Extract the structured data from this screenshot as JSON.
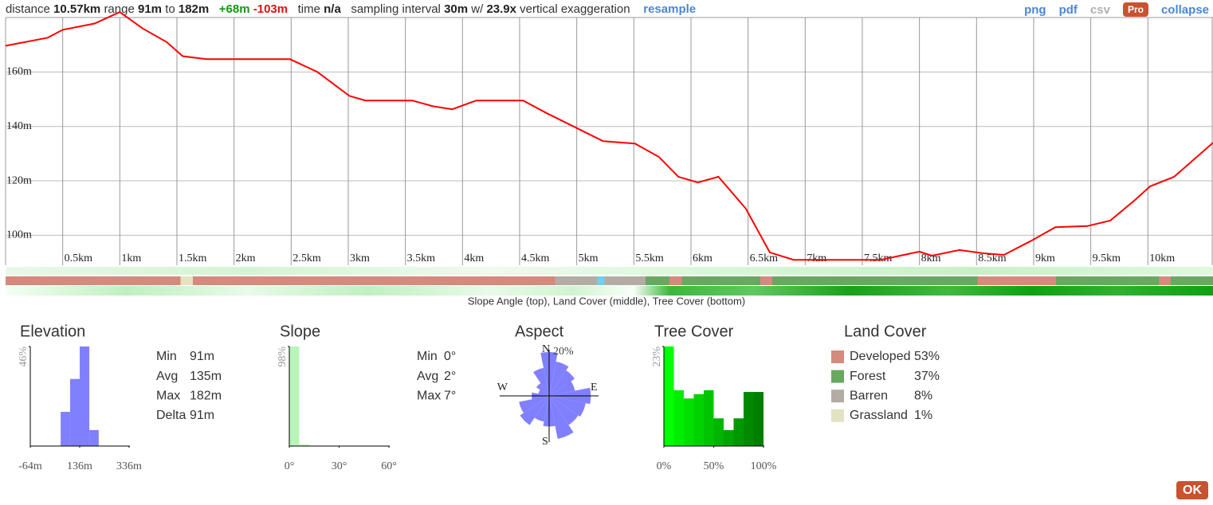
{
  "header": {
    "distance_label": "distance",
    "distance": "10.57km",
    "range_label": "range",
    "range_min": "91m",
    "range_to": "to",
    "range_max": "182m",
    "gain": "+68m",
    "loss": "-103m",
    "time_label": "time",
    "time": "n/a",
    "sampling_label": "sampling interval",
    "sampling": "30m",
    "sampling_with": "w/",
    "exaggeration": "23.9x",
    "exaggeration_label": "vertical exaggeration",
    "resample": "resample",
    "links": [
      "png",
      "pdf",
      "csv",
      "Pro",
      "collapse"
    ]
  },
  "strip_caption": "Slope Angle (top), Land Cover (middle), Tree Cover (bottom)",
  "chart_data": [
    {
      "type": "line",
      "color": "#ff0000",
      "grid": true,
      "x": [
        0,
        0.37,
        0.5,
        0.78,
        1.0,
        1.2,
        1.41,
        1.55,
        1.76,
        2.49,
        2.73,
        3.01,
        3.15,
        3.56,
        3.74,
        3.91,
        4.12,
        4.53,
        4.74,
        5.09,
        5.23,
        5.51,
        5.72,
        5.89,
        6.06,
        6.24,
        6.48,
        6.69,
        6.9,
        7.24,
        7.66,
        8.0,
        8.11,
        8.35,
        8.56,
        8.74,
        8.98,
        9.19,
        9.47,
        9.67,
        9.88,
        10.02,
        10.23,
        10.57
      ],
      "values": [
        169.6,
        172.6,
        175.5,
        177.8,
        182,
        176,
        171,
        165.8,
        164.7,
        164.7,
        160,
        151.2,
        149.5,
        149.5,
        147.4,
        146.3,
        149.5,
        149.5,
        144.8,
        137.5,
        134.6,
        133.7,
        128.8,
        121.5,
        119.4,
        121.5,
        109.8,
        93.7,
        91,
        91,
        91,
        94,
        92.5,
        94.6,
        93.4,
        92.8,
        98,
        103,
        103.4,
        105.4,
        112.7,
        118,
        121.5,
        134
      ],
      "xlim": [
        0,
        10.57
      ],
      "ylim": [
        89,
        180
      ],
      "xticks": [
        {
          "value": 0.5,
          "label": "0.5km"
        },
        {
          "value": 1,
          "label": "1km"
        },
        {
          "value": 1.5,
          "label": "1.5km"
        },
        {
          "value": 2,
          "label": "2km"
        },
        {
          "value": 2.5,
          "label": "2.5km"
        },
        {
          "value": 3,
          "label": "3km"
        },
        {
          "value": 3.5,
          "label": "3.5km"
        },
        {
          "value": 4,
          "label": "4km"
        },
        {
          "value": 4.5,
          "label": "4.5km"
        },
        {
          "value": 5,
          "label": "5km"
        },
        {
          "value": 5.5,
          "label": "5.5km"
        },
        {
          "value": 6,
          "label": "6km"
        },
        {
          "value": 6.5,
          "label": "6.5km"
        },
        {
          "value": 7,
          "label": "7km"
        },
        {
          "value": 7.5,
          "label": "7.5km"
        },
        {
          "value": 8,
          "label": "8km"
        },
        {
          "value": 8.5,
          "label": "8.5km"
        },
        {
          "value": 9,
          "label": "9km"
        },
        {
          "value": 9.5,
          "label": "9.5km"
        },
        {
          "value": 10,
          "label": "10km"
        }
      ],
      "yticks": [
        {
          "value": 100,
          "label": "100m"
        },
        {
          "value": 120,
          "label": "120m"
        },
        {
          "value": 140,
          "label": "140m"
        },
        {
          "value": 160,
          "label": "160m"
        }
      ]
    },
    {
      "type": "histogram",
      "title": "Elevation",
      "color": "#8080ff",
      "bins": [
        59,
        97,
        136,
        175,
        213
      ],
      "values": [
        15.8,
        31,
        46,
        7.4
      ],
      "xlim": [
        -64,
        336
      ],
      "ylim": [
        0,
        46
      ],
      "xticks": [
        {
          "value": -64,
          "label": "-64m"
        },
        {
          "value": 136,
          "label": "136m"
        },
        {
          "value": 336,
          "label": "336m"
        }
      ],
      "yticks": [
        {
          "value": 46,
          "label": "46%"
        }
      ]
    },
    {
      "type": "histogram",
      "title": "Slope",
      "color": "#b8f5b8",
      "bins": [
        0,
        6,
        12
      ],
      "values": [
        98,
        1.5
      ],
      "xlim": [
        0,
        60
      ],
      "ylim": [
        0,
        98
      ],
      "xticks": [
        {
          "value": 0,
          "label": "0°"
        },
        {
          "value": 30,
          "label": "30°"
        },
        {
          "value": 60,
          "label": "60°"
        }
      ],
      "yticks": [
        {
          "value": 98,
          "label": "98%"
        }
      ]
    },
    {
      "type": "rose",
      "title": "Aspect",
      "color": "#8080ff",
      "categories": [
        "N",
        null,
        null,
        null,
        "E",
        null,
        null,
        null,
        "S",
        null,
        null,
        null,
        "W",
        null,
        null,
        null
      ],
      "values": [
        20,
        16,
        14,
        12,
        19,
        17,
        16,
        20,
        14,
        12,
        16,
        14,
        8,
        5,
        7,
        13
      ],
      "rlim": [
        0,
        20
      ],
      "rticks": [
        {
          "value": 20,
          "label": "20%"
        }
      ]
    },
    {
      "type": "histogram",
      "title": "Tree Cover",
      "colors": [
        "#00ff00",
        "#00ee00",
        "#00e000",
        "#00d200",
        "#00c400",
        "#00b400",
        "#00a600",
        "#009800",
        "#008a00",
        "#007e00"
      ],
      "bins": [
        0,
        10,
        20,
        30,
        40,
        50,
        60,
        70,
        80,
        90,
        100
      ],
      "values": [
        23,
        12.9,
        11,
        12,
        12.9,
        6.4,
        3.7,
        6.4,
        12.5,
        12.5
      ],
      "xlim": [
        0,
        100
      ],
      "ylim": [
        0,
        23
      ],
      "xticks": [
        {
          "value": 0,
          "label": "0%"
        },
        {
          "value": 50,
          "label": "50%"
        },
        {
          "value": 100,
          "label": "100%"
        }
      ],
      "yticks": [
        {
          "value": 23,
          "label": "23%"
        }
      ]
    }
  ],
  "elevation_stats": [
    {
      "label": "Min",
      "value": "91m"
    },
    {
      "label": "Avg",
      "value": "135m"
    },
    {
      "label": "Max",
      "value": "182m"
    },
    {
      "label": "Delta",
      "value": "91m"
    }
  ],
  "slope_stats": [
    {
      "label": "Min",
      "value": "0°"
    },
    {
      "label": "Avg",
      "value": "2°"
    },
    {
      "label": "Max",
      "value": "7°"
    }
  ],
  "land_cover": {
    "title": "Land Cover",
    "items": [
      {
        "name": "Developed",
        "percent": "53%",
        "color": "#d48a7c"
      },
      {
        "name": "Forest",
        "percent": "37%",
        "color": "#68a860"
      },
      {
        "name": "Barren",
        "percent": "8%",
        "color": "#b3aca4"
      },
      {
        "name": "Grassland",
        "percent": "1%",
        "color": "#e3e2c2"
      }
    ]
  },
  "ok_button": "OK"
}
